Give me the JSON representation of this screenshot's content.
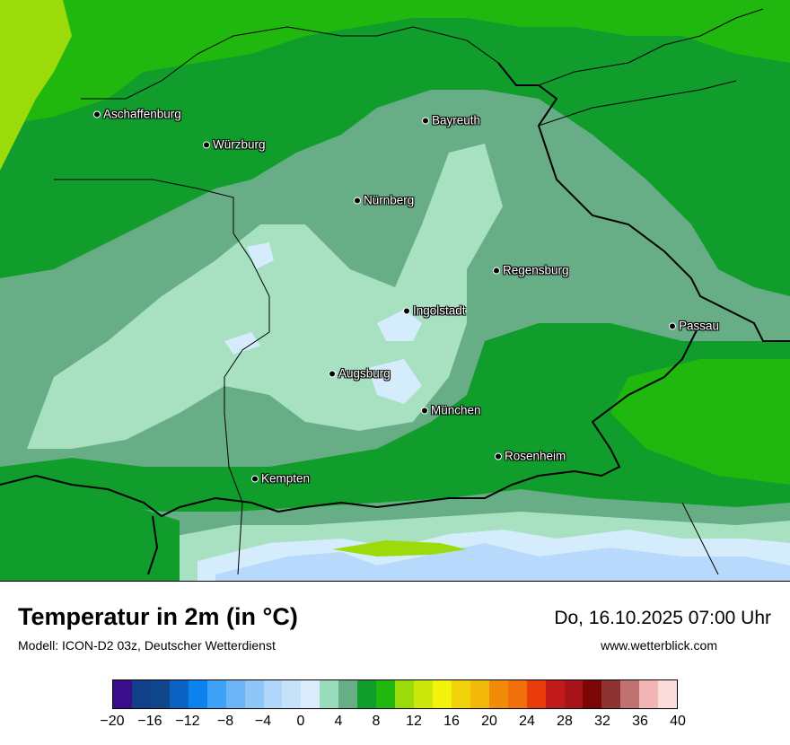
{
  "map": {
    "cities": [
      {
        "name": "Aschaffenburg"
      },
      {
        "name": "Würzburg"
      },
      {
        "name": "Bayreuth"
      },
      {
        "name": "Nürnberg"
      },
      {
        "name": "Regensburg"
      },
      {
        "name": "Ingolstadt"
      },
      {
        "name": "Passau"
      },
      {
        "name": "Augsburg"
      },
      {
        "name": "München"
      },
      {
        "name": "Rosenheim"
      },
      {
        "name": "Kempten"
      }
    ],
    "zone_colors": {
      "c2_4": "#a8e0c2",
      "c4_6": "#67ad85",
      "c6_8": "#109d2c",
      "c8_10": "#20b80e",
      "c10_12": "#9cdb0a",
      "c0_2": "#d4ecfc",
      "cm2_0": "#b7d9fb",
      "cm4_m2": "#92c7f8"
    }
  },
  "footer": {
    "title": "Temperatur in 2m (in °C)",
    "model": "Modell: ICON-D2 03z, Deutscher Wetterdienst",
    "datetime": "Do, 16.10.2025 07:00 Uhr",
    "site": "www.wetterblick.com"
  },
  "legend": {
    "colors": [
      "#3a0e8a",
      "#123f8a",
      "#10468a",
      "#0a63c2",
      "#0a83ee",
      "#3ea3f7",
      "#6cb5f7",
      "#8fc6f8",
      "#afd7fb",
      "#c6e2fb",
      "#dcecfc",
      "#99dcbb",
      "#67ad85",
      "#109d2c",
      "#20b80e",
      "#9cdb0a",
      "#cce80a",
      "#f2f20a",
      "#f2d30a",
      "#f2b90a",
      "#f28a0a",
      "#f2700a",
      "#e83a0a",
      "#c01a1a",
      "#a8141a",
      "#7a0606",
      "#8e3232",
      "#c07272",
      "#f2b6b6",
      "#fddcdc"
    ],
    "ticks": [
      "−20",
      "−16",
      "−12",
      "−8",
      "−4",
      "0",
      "4",
      "8",
      "12",
      "16",
      "20",
      "24",
      "28",
      "32",
      "36",
      "40"
    ]
  }
}
